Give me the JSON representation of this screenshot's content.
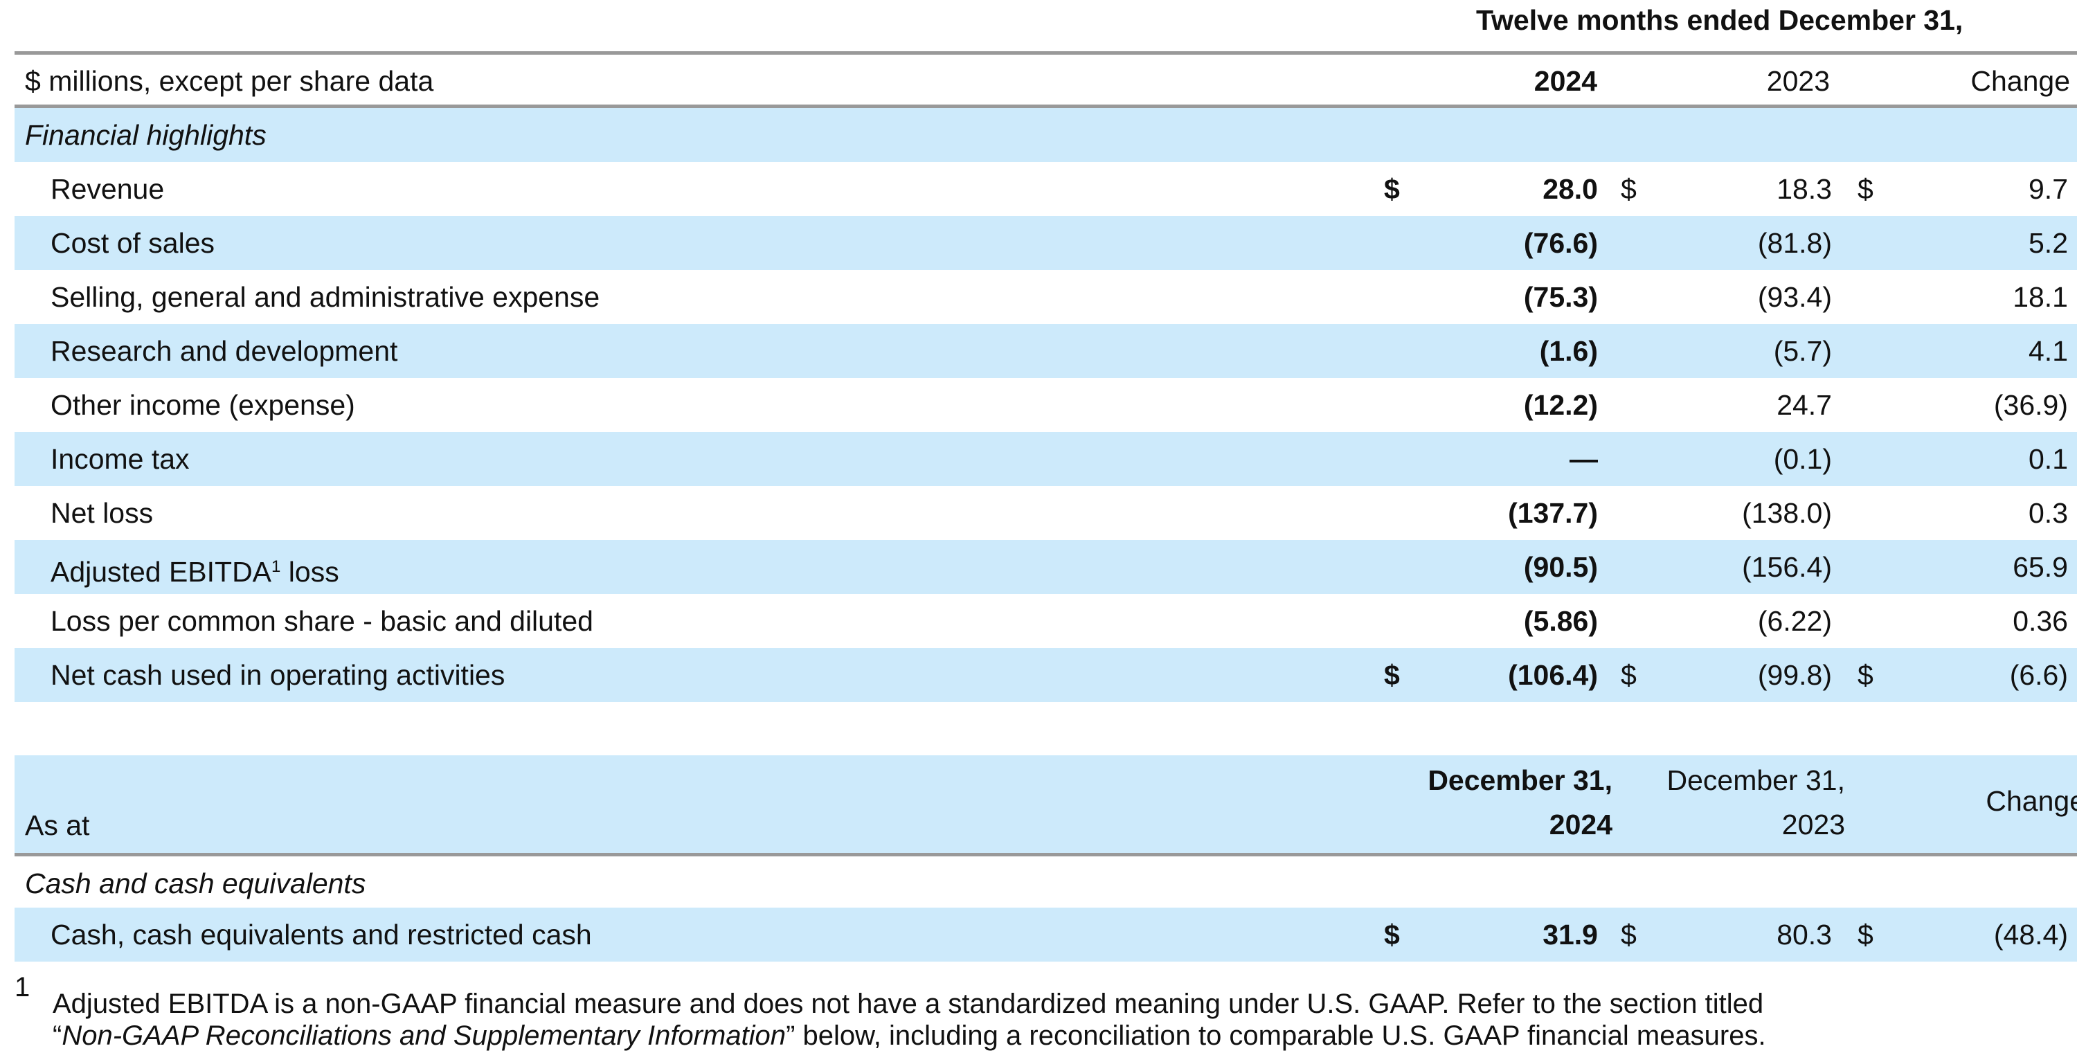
{
  "header": {
    "period_title": "Twelve months ended December 31,",
    "units_label": "$ millions, except per share data",
    "col_2024": "2024",
    "col_2023": "2023",
    "col_change": "Change"
  },
  "section1": {
    "title": "Financial highlights",
    "rows": [
      {
        "label": "Revenue",
        "cur": "$",
        "v2024": "28.0",
        "v2023": "18.3",
        "change": "9.7"
      },
      {
        "label": "Cost of sales",
        "cur": "",
        "v2024": "(76.6)",
        "v2023": "(81.8)",
        "change": "5.2"
      },
      {
        "label": "Selling, general and administrative expense",
        "cur": "",
        "v2024": "(75.3)",
        "v2023": "(93.4)",
        "change": "18.1"
      },
      {
        "label": "Research and development",
        "cur": "",
        "v2024": "(1.6)",
        "v2023": "(5.7)",
        "change": "4.1"
      },
      {
        "label": "Other income (expense)",
        "cur": "",
        "v2024": "(12.2)",
        "v2023": "24.7",
        "change": "(36.9)"
      },
      {
        "label": "Income tax",
        "cur": "",
        "v2024": "—",
        "v2023": "(0.1)",
        "change": "0.1"
      },
      {
        "label": "Net loss",
        "cur": "",
        "v2024": "(137.7)",
        "v2023": "(138.0)",
        "change": "0.3"
      },
      {
        "label": "Adjusted EBITDA",
        "label_sup": "1",
        "label_suffix": " loss",
        "cur": "",
        "v2024": "(90.5)",
        "v2023": "(156.4)",
        "change": "65.9"
      },
      {
        "label": "Loss per common share - basic and diluted",
        "cur": "",
        "v2024": "(5.86)",
        "v2023": "(6.22)",
        "change": "0.36"
      },
      {
        "label": "Net cash used in operating activities",
        "cur": "$",
        "v2024": "(106.4)",
        "v2023": "(99.8)",
        "change": "(6.6)"
      }
    ]
  },
  "header2": {
    "as_at": "As at",
    "col_2024_line1": "December 31,",
    "col_2024_line2": "2024",
    "col_2023_line1": "December 31,",
    "col_2023_line2": "2023",
    "col_change": "Change"
  },
  "section2": {
    "title": "Cash and cash equivalents",
    "rows": [
      {
        "label": "Cash, cash equivalents and restricted cash",
        "cur": "$",
        "v2024": "31.9",
        "v2023": "80.3",
        "change": "(48.4)"
      }
    ]
  },
  "footnote": {
    "marker": "1",
    "line1": "Adjusted EBITDA is a non-GAAP financial measure and does not have a standardized meaning under U.S. GAAP. Refer to the section titled",
    "line2_open_quote": "“",
    "line2_italic": "Non-GAAP Reconciliations and Supplementary Information",
    "line2_rest": "” below, including a reconciliation to comparable U.S. GAAP financial measures."
  },
  "colors": {
    "row_shade": "#cdeafb",
    "rule": "#999999"
  }
}
